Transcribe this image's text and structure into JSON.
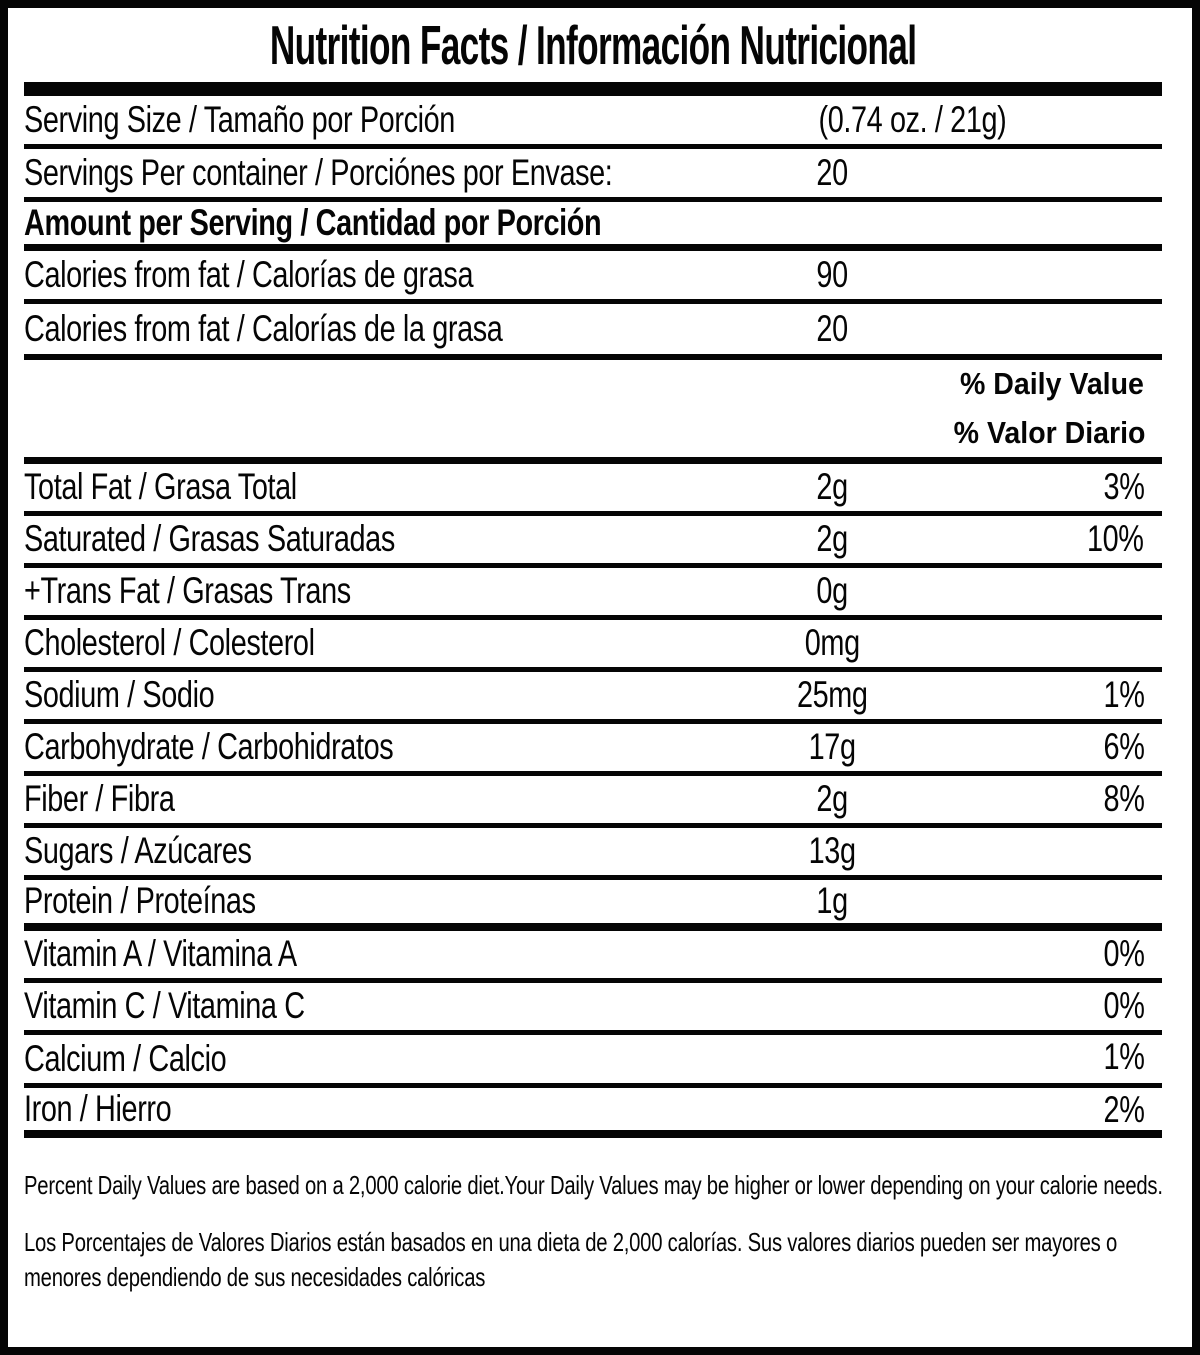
{
  "title": "Nutrition Facts / Información Nutricional",
  "serving": {
    "size_label": "Serving Size / Tamaño por Porción",
    "size_value": "(0.74 oz. / 21g)",
    "per_container_label": "Servings Per container / Porciónes por Envase:",
    "per_container_value": "20"
  },
  "amount_heading": "Amount per Serving / Cantidad por Porción",
  "calories_rows": [
    {
      "label": "Calories from fat / Calorías de grasa",
      "value": "90"
    },
    {
      "label": "Calories from fat / Calorías de la grasa",
      "value": "20"
    }
  ],
  "daily_value_heading_en": "% Daily Value",
  "daily_value_heading_es": "% Valor Diario",
  "nutrients": [
    {
      "label": "Total Fat / Grasa Total",
      "amount": "2g",
      "dv": "3%"
    },
    {
      "label": "Saturated / Grasas Saturadas",
      "amount": "2g",
      "dv": "10%"
    },
    {
      "label": "+Trans Fat / Grasas Trans",
      "amount": "0g",
      "dv": ""
    },
    {
      "label": "Cholesterol / Colesterol",
      "amount": "0mg",
      "dv": ""
    },
    {
      "label": "Sodium / Sodio",
      "amount": "25mg",
      "dv": "1%"
    },
    {
      "label": "Carbohydrate / Carbohidratos",
      "amount": "17g",
      "dv": "6%"
    },
    {
      "label": "Fiber / Fibra",
      "amount": "2g",
      "dv": "8%"
    },
    {
      "label": "Sugars / Azúcares",
      "amount": "13g",
      "dv": ""
    },
    {
      "label": "Protein / Proteínas",
      "amount": "1g",
      "dv": ""
    }
  ],
  "vitamins": [
    {
      "label": "Vitamin A / Vitamina A",
      "dv": "0%"
    },
    {
      "label": "Vitamin C / Vitamina C",
      "dv": "0%"
    },
    {
      "label": "Calcium / Calcio",
      "dv": "1%"
    },
    {
      "label": "Iron / Hierro",
      "dv": "2%"
    }
  ],
  "footnotes": {
    "en": "Percent Daily Values are based on a 2,000 calorie diet.Your Daily Values may be higher or lower depending on your calorie needs.",
    "es": "Los Porcentajes de Valores Diarios están basados en una dieta de 2,000 calorías. Sus valores diarios pueden ser mayores o menores dependiendo de sus necesidades calóricas"
  },
  "colors": {
    "ink": "#050505",
    "background": "#ffffff"
  }
}
